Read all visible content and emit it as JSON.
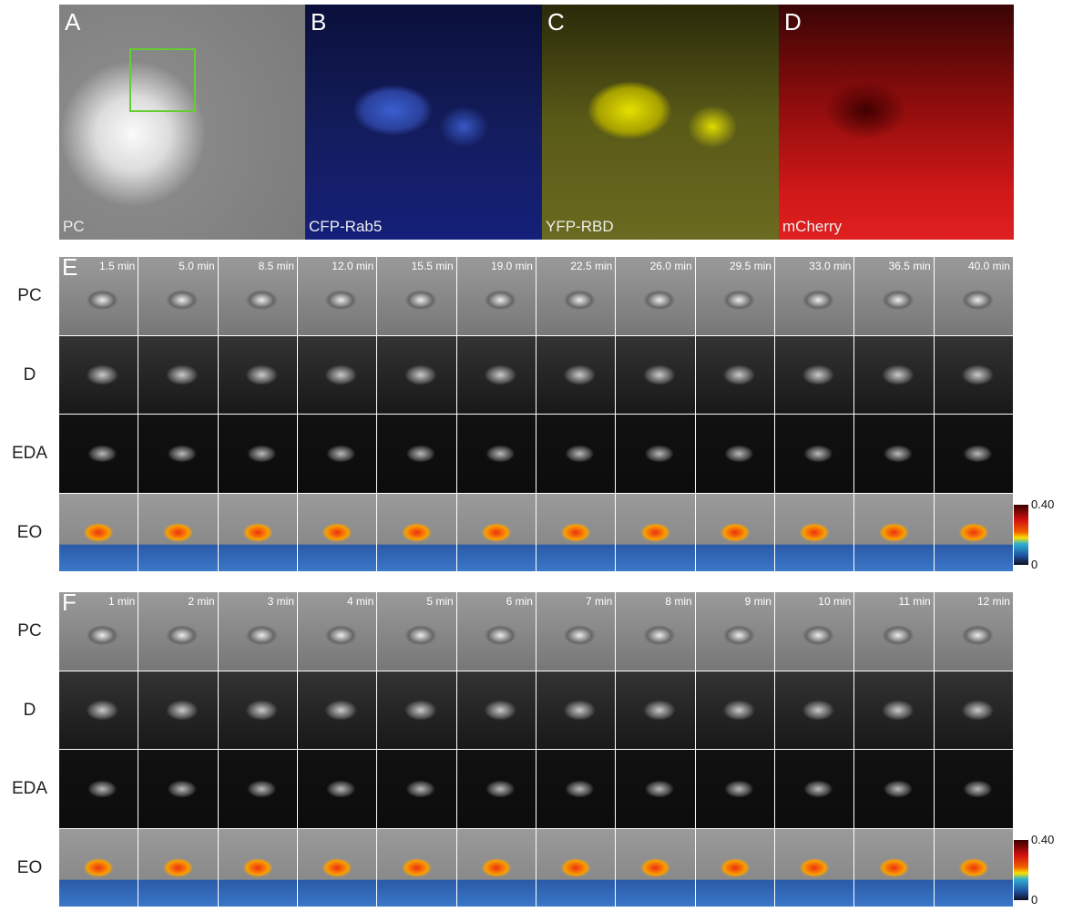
{
  "top_panels": [
    {
      "letter": "A",
      "caption": "PC"
    },
    {
      "letter": "B",
      "caption": "CFP-Rab5"
    },
    {
      "letter": "C",
      "caption": "YFP-RBD"
    },
    {
      "letter": "D",
      "caption": "mCherry"
    }
  ],
  "panel_e": {
    "letter": "E",
    "times": [
      "1.5 min",
      "5.0 min",
      "8.5 min",
      "12.0 min",
      "15.5 min",
      "19.0 min",
      "22.5 min",
      "26.0 min",
      "29.5 min",
      "33.0 min",
      "36.5 min",
      "40.0 min"
    ],
    "rows": [
      "PC",
      "D",
      "EDA",
      "EO"
    ],
    "colorbar": {
      "max": "0.40",
      "min": "0"
    }
  },
  "panel_f": {
    "letter": "F",
    "times": [
      "1 min",
      "2 min",
      "3 min",
      "4 min",
      "5 min",
      "6 min",
      "7 min",
      "8 min",
      "9 min",
      "10 min",
      "11 min",
      "12 min"
    ],
    "rows": [
      "PC",
      "D",
      "EDA",
      "EO"
    ],
    "colorbar": {
      "max": "0.40",
      "min": "0"
    }
  }
}
